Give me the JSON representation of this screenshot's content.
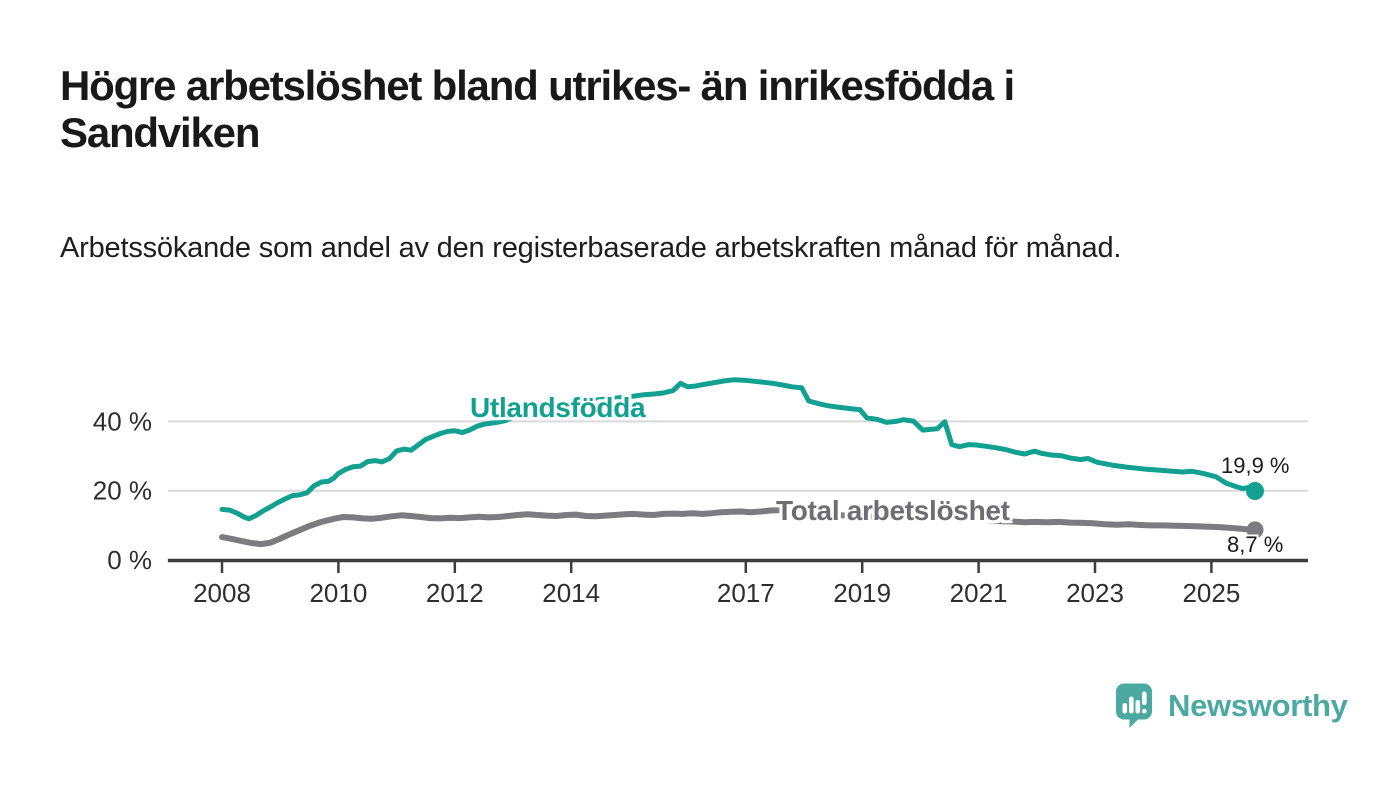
{
  "brand": {
    "name": "Newsworthy"
  },
  "chart_data": {
    "type": "line",
    "title": "Högre arbetslöshet bland utrikes- än inrikesfödda i Sandviken",
    "subtitle": "Arbetssökande som andel av den registerbaserade arbetskraften månad för månad.",
    "legend": "inline-labels-on-lines",
    "style": {
      "grid_color": "#d9d9d9",
      "axis_color": "#3d3d3d",
      "tick_text_color": "#2e2e2e",
      "background": "#ffffff"
    },
    "x_axis": {
      "unit": "year",
      "range": [
        2007.07,
        2026.66
      ],
      "ticks": [
        2008,
        2010,
        2012,
        2014,
        2017,
        2019,
        2021,
        2023,
        2025
      ],
      "tick_labels": [
        "2008",
        "2010",
        "2012",
        "2014",
        "2017",
        "2019",
        "2021",
        "2023",
        "2025"
      ]
    },
    "y_axis": {
      "unit": "%",
      "range": [
        0,
        57
      ],
      "grid": true,
      "tick_values": [
        0,
        20,
        40
      ],
      "tick_labels": [
        "0 %",
        "20 %",
        "40 %"
      ]
    },
    "series": [
      {
        "id": "utlandsfodda",
        "name": "Utlandsfödda",
        "color": "#12a191",
        "end_label": "19,9 %",
        "end_value": 19.9,
        "points": [
          [
            2008.0,
            14.6
          ],
          [
            2008.13,
            14.4
          ],
          [
            2008.25,
            13.6
          ],
          [
            2008.38,
            12.4
          ],
          [
            2008.46,
            11.9
          ],
          [
            2008.58,
            12.8
          ],
          [
            2008.71,
            14.2
          ],
          [
            2008.83,
            15.3
          ],
          [
            2008.96,
            16.6
          ],
          [
            2009.08,
            17.6
          ],
          [
            2009.21,
            18.6
          ],
          [
            2009.33,
            18.8
          ],
          [
            2009.46,
            19.4
          ],
          [
            2009.58,
            21.4
          ],
          [
            2009.71,
            22.5
          ],
          [
            2009.83,
            22.7
          ],
          [
            2009.92,
            23.6
          ],
          [
            2010.0,
            25.0
          ],
          [
            2010.13,
            26.2
          ],
          [
            2010.25,
            26.9
          ],
          [
            2010.38,
            27.1
          ],
          [
            2010.5,
            28.4
          ],
          [
            2010.63,
            28.7
          ],
          [
            2010.75,
            28.3
          ],
          [
            2010.88,
            29.3
          ],
          [
            2011.0,
            31.5
          ],
          [
            2011.13,
            32.0
          ],
          [
            2011.25,
            31.7
          ],
          [
            2011.38,
            33.3
          ],
          [
            2011.5,
            34.8
          ],
          [
            2011.63,
            35.7
          ],
          [
            2011.75,
            36.5
          ],
          [
            2011.88,
            37.1
          ],
          [
            2012.0,
            37.3
          ],
          [
            2012.13,
            36.8
          ],
          [
            2012.25,
            37.5
          ],
          [
            2012.38,
            38.6
          ],
          [
            2012.5,
            39.2
          ],
          [
            2012.63,
            39.5
          ],
          [
            2012.75,
            39.8
          ],
          [
            2012.88,
            40.3
          ],
          [
            2013.0,
            41.1
          ],
          [
            2013.17,
            41.8
          ],
          [
            2013.33,
            42.3
          ],
          [
            2013.5,
            42.6
          ],
          [
            2013.67,
            43.3
          ],
          [
            2013.83,
            44.3
          ],
          [
            2014.0,
            45.1
          ],
          [
            2014.17,
            45.6
          ],
          [
            2014.33,
            46.0
          ],
          [
            2014.5,
            46.3
          ],
          [
            2014.71,
            46.6
          ],
          [
            2014.92,
            47.0
          ],
          [
            2015.08,
            47.3
          ],
          [
            2015.25,
            47.7
          ],
          [
            2015.42,
            47.9
          ],
          [
            2015.58,
            48.2
          ],
          [
            2015.75,
            48.9
          ],
          [
            2015.88,
            51.0
          ],
          [
            2016.0,
            50.0
          ],
          [
            2016.13,
            50.2
          ],
          [
            2016.29,
            50.7
          ],
          [
            2016.46,
            51.2
          ],
          [
            2016.63,
            51.7
          ],
          [
            2016.79,
            52.0
          ],
          [
            2016.96,
            51.9
          ],
          [
            2017.13,
            51.6
          ],
          [
            2017.29,
            51.3
          ],
          [
            2017.46,
            51.0
          ],
          [
            2017.63,
            50.5
          ],
          [
            2017.79,
            50.0
          ],
          [
            2017.96,
            49.7
          ],
          [
            2018.08,
            45.9
          ],
          [
            2018.25,
            45.1
          ],
          [
            2018.42,
            44.5
          ],
          [
            2018.63,
            44.0
          ],
          [
            2018.83,
            43.6
          ],
          [
            2018.96,
            43.4
          ],
          [
            2019.08,
            41.0
          ],
          [
            2019.25,
            40.6
          ],
          [
            2019.42,
            39.7
          ],
          [
            2019.58,
            40.0
          ],
          [
            2019.71,
            40.5
          ],
          [
            2019.88,
            40.1
          ],
          [
            2020.04,
            37.5
          ],
          [
            2020.17,
            37.7
          ],
          [
            2020.29,
            37.9
          ],
          [
            2020.42,
            39.9
          ],
          [
            2020.54,
            33.3
          ],
          [
            2020.67,
            32.7
          ],
          [
            2020.83,
            33.3
          ],
          [
            2020.96,
            33.2
          ],
          [
            2021.13,
            32.8
          ],
          [
            2021.29,
            32.4
          ],
          [
            2021.46,
            31.9
          ],
          [
            2021.63,
            31.1
          ],
          [
            2021.79,
            30.6
          ],
          [
            2021.96,
            31.4
          ],
          [
            2022.08,
            30.8
          ],
          [
            2022.25,
            30.3
          ],
          [
            2022.42,
            30.1
          ],
          [
            2022.58,
            29.4
          ],
          [
            2022.75,
            29.0
          ],
          [
            2022.88,
            29.3
          ],
          [
            2023.04,
            28.2
          ],
          [
            2023.29,
            27.4
          ],
          [
            2023.54,
            26.8
          ],
          [
            2023.71,
            26.5
          ],
          [
            2023.88,
            26.2
          ],
          [
            2024.04,
            26.0
          ],
          [
            2024.25,
            25.7
          ],
          [
            2024.5,
            25.4
          ],
          [
            2024.67,
            25.6
          ],
          [
            2024.88,
            24.9
          ],
          [
            2025.08,
            24.0
          ],
          [
            2025.25,
            22.2
          ],
          [
            2025.42,
            21.2
          ],
          [
            2025.54,
            20.6
          ],
          [
            2025.63,
            20.9
          ],
          [
            2025.75,
            19.9
          ]
        ]
      },
      {
        "id": "total-arbetsloshet",
        "name": "Total arbetslöshet",
        "color": "#7b7b80",
        "label_color": "#6d6d72",
        "end_label": "8,7 %",
        "end_value": 8.7,
        "points": [
          [
            2008.0,
            6.6
          ],
          [
            2008.17,
            6.1
          ],
          [
            2008.33,
            5.5
          ],
          [
            2008.5,
            4.9
          ],
          [
            2008.67,
            4.6
          ],
          [
            2008.83,
            5.0
          ],
          [
            2008.96,
            5.9
          ],
          [
            2009.13,
            7.2
          ],
          [
            2009.29,
            8.3
          ],
          [
            2009.5,
            9.8
          ],
          [
            2009.71,
            11.0
          ],
          [
            2009.92,
            11.9
          ],
          [
            2010.08,
            12.4
          ],
          [
            2010.25,
            12.3
          ],
          [
            2010.42,
            12.0
          ],
          [
            2010.58,
            11.9
          ],
          [
            2010.75,
            12.2
          ],
          [
            2010.92,
            12.6
          ],
          [
            2011.08,
            12.9
          ],
          [
            2011.25,
            12.7
          ],
          [
            2011.42,
            12.4
          ],
          [
            2011.58,
            12.1
          ],
          [
            2011.75,
            12.0
          ],
          [
            2011.92,
            12.2
          ],
          [
            2012.08,
            12.1
          ],
          [
            2012.25,
            12.3
          ],
          [
            2012.42,
            12.5
          ],
          [
            2012.58,
            12.3
          ],
          [
            2012.75,
            12.4
          ],
          [
            2012.92,
            12.7
          ],
          [
            2013.08,
            13.0
          ],
          [
            2013.25,
            13.2
          ],
          [
            2013.42,
            13.0
          ],
          [
            2013.58,
            12.8
          ],
          [
            2013.75,
            12.7
          ],
          [
            2013.92,
            13.0
          ],
          [
            2014.08,
            13.1
          ],
          [
            2014.25,
            12.7
          ],
          [
            2014.42,
            12.6
          ],
          [
            2014.58,
            12.8
          ],
          [
            2014.75,
            13.0
          ],
          [
            2014.92,
            13.2
          ],
          [
            2015.08,
            13.3
          ],
          [
            2015.25,
            13.1
          ],
          [
            2015.42,
            13.0
          ],
          [
            2015.58,
            13.3
          ],
          [
            2015.75,
            13.4
          ],
          [
            2015.92,
            13.3
          ],
          [
            2016.08,
            13.5
          ],
          [
            2016.25,
            13.3
          ],
          [
            2016.42,
            13.5
          ],
          [
            2016.58,
            13.8
          ],
          [
            2016.75,
            13.9
          ],
          [
            2016.92,
            14.0
          ],
          [
            2017.08,
            13.8
          ],
          [
            2017.25,
            14.0
          ],
          [
            2017.42,
            14.3
          ],
          [
            2017.58,
            14.4
          ],
          [
            2017.75,
            14.1
          ],
          [
            2017.92,
            13.8
          ],
          [
            2018.13,
            13.4
          ],
          [
            2018.38,
            13.1
          ],
          [
            2018.63,
            12.9
          ],
          [
            2018.88,
            12.7
          ],
          [
            2019.13,
            12.6
          ],
          [
            2019.38,
            12.5
          ],
          [
            2019.63,
            12.4
          ],
          [
            2019.88,
            12.6
          ],
          [
            2020.13,
            12.9
          ],
          [
            2020.33,
            13.1
          ],
          [
            2020.54,
            12.8
          ],
          [
            2020.75,
            12.4
          ],
          [
            2020.96,
            11.9
          ],
          [
            2021.17,
            11.5
          ],
          [
            2021.38,
            11.2
          ],
          [
            2021.58,
            11.1
          ],
          [
            2021.79,
            10.9
          ],
          [
            2021.96,
            11.0
          ],
          [
            2022.17,
            10.9
          ],
          [
            2022.38,
            11.0
          ],
          [
            2022.58,
            10.8
          ],
          [
            2022.79,
            10.7
          ],
          [
            2022.96,
            10.6
          ],
          [
            2023.17,
            10.3
          ],
          [
            2023.38,
            10.2
          ],
          [
            2023.58,
            10.3
          ],
          [
            2023.79,
            10.1
          ],
          [
            2023.96,
            10.0
          ],
          [
            2024.17,
            10.0
          ],
          [
            2024.38,
            9.9
          ],
          [
            2024.58,
            9.8
          ],
          [
            2024.79,
            9.7
          ],
          [
            2024.96,
            9.6
          ],
          [
            2025.13,
            9.5
          ],
          [
            2025.29,
            9.3
          ],
          [
            2025.46,
            9.1
          ],
          [
            2025.58,
            8.9
          ],
          [
            2025.67,
            8.8
          ],
          [
            2025.75,
            8.7
          ]
        ]
      }
    ]
  }
}
